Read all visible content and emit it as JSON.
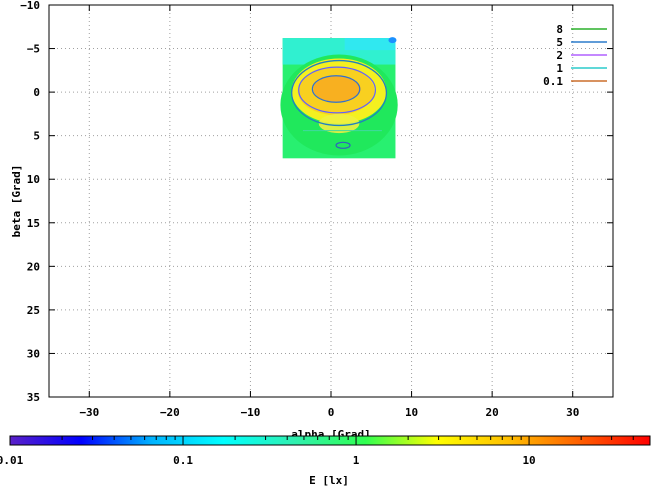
{
  "chart_data": {
    "type": "heatmap",
    "xlabel": "alpha [Grad]",
    "ylabel": "beta [Grad]",
    "xlim": [
      -35,
      35
    ],
    "ylim": [
      -10,
      35
    ],
    "y_reversed": true,
    "xticks": [
      -30,
      -20,
      -10,
      0,
      10,
      20,
      30
    ],
    "yticks": [
      -10,
      -5,
      0,
      5,
      10,
      15,
      20,
      25,
      30,
      35
    ],
    "grid": true,
    "legend_position": "top-right",
    "data_extent": {
      "alpha": [
        -6,
        8
      ],
      "beta": [
        -6.2,
        7.6
      ]
    },
    "contour_series": [
      {
        "name": "8",
        "color": "#00a000"
      },
      {
        "name": "5",
        "color": "#0060c0"
      },
      {
        "name": "2",
        "color": "#a040ff"
      },
      {
        "name": "1",
        "color": "#00c0c0"
      },
      {
        "name": "0.1",
        "color": "#c05000"
      }
    ],
    "colorbar": {
      "label": "E [lx]",
      "scale": "log",
      "range": [
        0.01,
        50
      ],
      "tick_labels": [
        "0.01",
        "0.1",
        "1",
        "10"
      ],
      "tick_values": [
        0.01,
        0.1,
        1,
        10
      ],
      "colors": [
        "#5a20c8",
        "#0000ff",
        "#00b4ff",
        "#00ffff",
        "#30f0b0",
        "#30ff50",
        "#ffff00",
        "#ffc000",
        "#ff6000",
        "#ff0000"
      ]
    }
  }
}
